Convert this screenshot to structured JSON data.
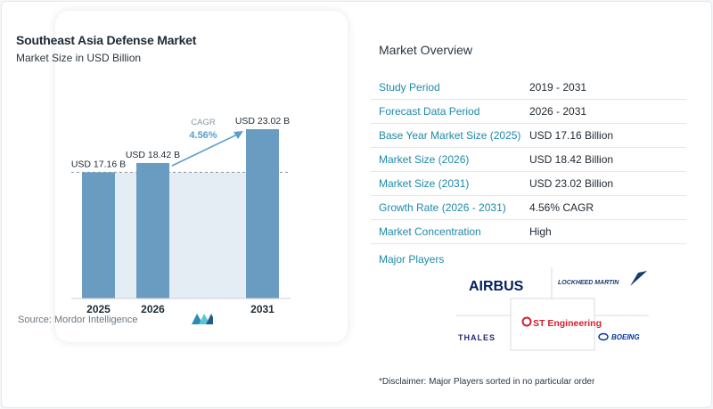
{
  "chart_data": {
    "type": "bar",
    "title": "Southeast Asia Defense Market",
    "subtitle": "Market Size in USD Billion",
    "categories": [
      "2025",
      "2026",
      "2031"
    ],
    "values": [
      17.16,
      18.42,
      23.02
    ],
    "value_labels": [
      "USD 17.16 B",
      "USD 18.42 B",
      "USD 23.02 B"
    ],
    "cagr_label": "CAGR",
    "cagr_value": "4.56%",
    "bar_color": "#6a9cc2",
    "band_color": "#e4edf4",
    "grid": false
  },
  "source": {
    "label": "Source:",
    "name": "Mordor Intelligence"
  },
  "overview": {
    "title": "Market Overview",
    "rows": [
      {
        "label": "Study Period",
        "value": "2019 - 2031"
      },
      {
        "label": "Forecast Data Period",
        "value": "2026 - 2031"
      },
      {
        "label": "Base Year Market Size (2025)",
        "value": "USD 17.16 Billion"
      },
      {
        "label": "Market Size (2026)",
        "value": "USD 18.42 Billion"
      },
      {
        "label": "Market Size (2031)",
        "value": "USD 23.02 Billion"
      },
      {
        "label": "Growth Rate (2026 - 2031)",
        "value": "4.56% CAGR"
      },
      {
        "label": "Market Concentration",
        "value": "High"
      }
    ]
  },
  "players": {
    "title": "Major Players",
    "logos": [
      "AIRBUS",
      "LOCKHEED MARTIN",
      "ST Engineering",
      "THALES",
      "BOEING"
    ]
  },
  "disclaimer": "*Disclaimer: Major Players sorted in no particular order",
  "colors": {
    "accent": "#1e8aa8",
    "bar": "#6a9cc2",
    "cagr": "#5b9ec9"
  }
}
